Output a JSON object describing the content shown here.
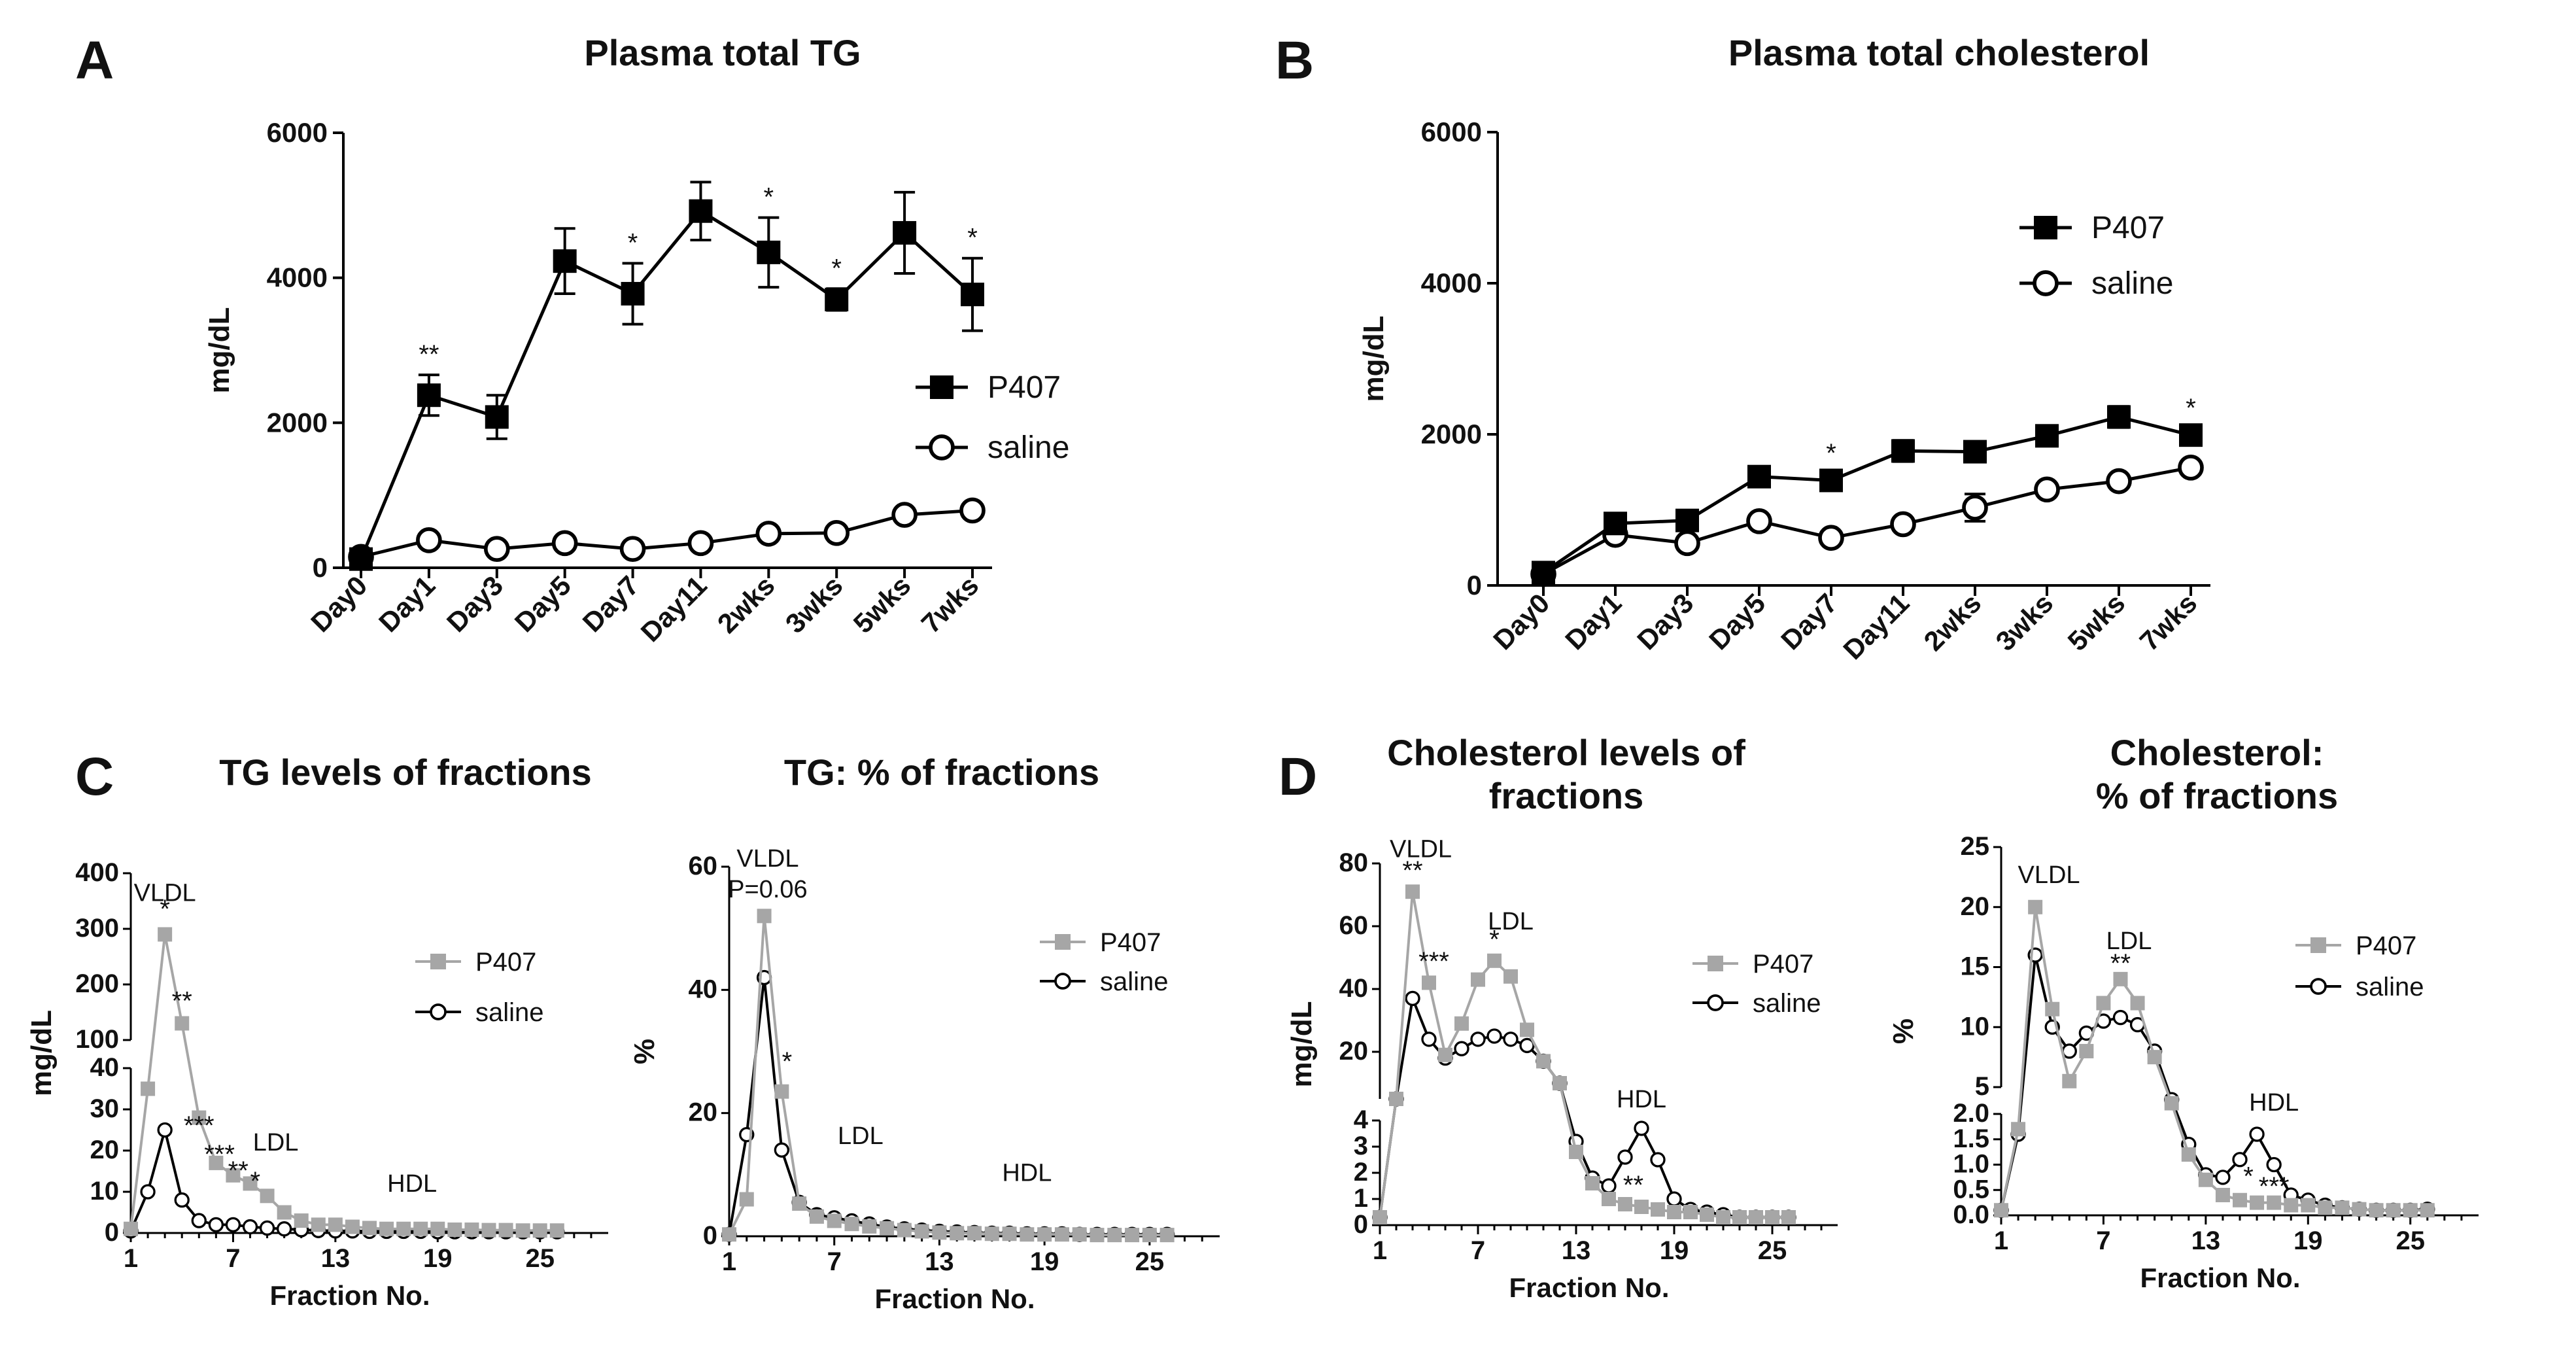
{
  "panel_letters": {
    "A": "A",
    "B": "B",
    "C": "C",
    "D": "D"
  },
  "chart_data": [
    {
      "id": "A",
      "type": "line",
      "title": "Plasma total TG",
      "ylabel": "mg/dL",
      "categories": [
        "Day0",
        "Day1",
        "Day3",
        "Day5",
        "Day7",
        "Day11",
        "2wks",
        "3wks",
        "5wks",
        "7wks"
      ],
      "ylim": [
        0,
        6000
      ],
      "yticks": [
        "0",
        "2000",
        "4000",
        "6000"
      ],
      "legend": "center-right",
      "series": [
        {
          "name": "P407",
          "color": "#000000",
          "marker": "square",
          "values": [
            120,
            2380,
            2080,
            4230,
            3780,
            4920,
            4350,
            3700,
            4620,
            3770
          ],
          "errors": [
            60,
            280,
            300,
            450,
            420,
            400,
            480,
            150,
            560,
            500
          ]
        },
        {
          "name": "saline",
          "color": "#000000",
          "marker": "circle-open",
          "values": [
            150,
            380,
            260,
            340,
            260,
            340,
            470,
            480,
            730,
            790
          ],
          "errors": [
            30,
            50,
            40,
            50,
            40,
            40,
            60,
            50,
            70,
            60
          ]
        }
      ],
      "significance": [
        "",
        "**",
        "",
        "",
        "*",
        "",
        "*",
        "*",
        "",
        "*"
      ]
    },
    {
      "id": "B",
      "type": "line",
      "title": "Plasma total cholesterol",
      "ylabel": "mg/dL",
      "categories": [
        "Day0",
        "Day1",
        "Day3",
        "Day5",
        "Day7",
        "Day11",
        "2wks",
        "3wks",
        "5wks",
        "7wks"
      ],
      "ylim": [
        0,
        6000
      ],
      "yticks": [
        "0",
        "2000",
        "4000",
        "6000"
      ],
      "legend": "top-right",
      "series": [
        {
          "name": "P407",
          "color": "#000000",
          "marker": "square",
          "values": [
            170,
            820,
            860,
            1440,
            1390,
            1780,
            1770,
            1980,
            2230,
            1990
          ],
          "errors": [
            40,
            80,
            80,
            90,
            90,
            140,
            80,
            80,
            140,
            90
          ]
        },
        {
          "name": "saline",
          "color": "#000000",
          "marker": "circle-open",
          "values": [
            150,
            670,
            560,
            850,
            630,
            810,
            1030,
            1270,
            1380,
            1560
          ],
          "errors": [
            30,
            60,
            50,
            60,
            50,
            60,
            180,
            70,
            70,
            70
          ]
        }
      ],
      "significance": [
        "",
        "",
        "",
        "",
        "*",
        "",
        "",
        "",
        "",
        "*"
      ]
    },
    {
      "id": "C-left",
      "type": "line",
      "title": "TG levels of fractions",
      "ylabel": "mg/dL",
      "xlabel": "Fraction No.",
      "x": [
        1,
        2,
        3,
        4,
        5,
        6,
        7,
        8,
        9,
        10,
        11,
        12,
        13,
        14,
        15,
        16,
        17,
        18,
        19,
        20,
        21,
        22,
        23,
        24,
        25,
        26
      ],
      "xticks": [
        "1",
        "7",
        "13",
        "19",
        "25"
      ],
      "y_break": true,
      "ylim_lower": [
        0,
        40
      ],
      "ylim_upper": [
        100,
        400
      ],
      "yticks_lower": [
        "0",
        "10",
        "20",
        "30",
        "40"
      ],
      "yticks_upper": [
        "100",
        "200",
        "300",
        "400"
      ],
      "legend": "right",
      "series": [
        {
          "name": "P407",
          "color": "#a6a6a6",
          "marker": "square",
          "values": [
            1,
            35,
            290,
            130,
            28,
            17,
            14,
            12,
            9,
            5,
            3,
            2,
            2,
            1.5,
            1.2,
            1,
            1,
            1,
            1,
            0.8,
            0.8,
            0.7,
            0.7,
            0.6,
            0.6,
            0.6
          ]
        },
        {
          "name": "saline",
          "color": "#000000",
          "marker": "circle-open",
          "values": [
            0.5,
            10,
            25,
            8,
            3,
            2,
            2,
            1.5,
            1.2,
            1,
            0.8,
            0.6,
            0.5,
            0.5,
            0.4,
            0.4,
            0.4,
            0.4,
            0.3,
            0.3,
            0.3,
            0.3,
            0.3,
            0.3,
            0.3,
            0.3
          ]
        }
      ],
      "annotations": [
        {
          "text": "VLDL",
          "x": 3,
          "y": 350
        },
        {
          "text": "LDL",
          "x": 9.5,
          "y": 20
        },
        {
          "text": "HDL",
          "x": 17.5,
          "y": 10
        },
        {
          "text": "*",
          "x": 3,
          "y": 320
        },
        {
          "text": "**",
          "x": 4,
          "y": 155
        },
        {
          "text": "***",
          "x": 5,
          "y": 24
        },
        {
          "text": "***",
          "x": 6.2,
          "y": 17
        },
        {
          "text": "**",
          "x": 7.3,
          "y": 13
        },
        {
          "text": "*",
          "x": 8.3,
          "y": 10.5
        }
      ]
    },
    {
      "id": "C-right",
      "type": "line",
      "title": "TG: % of fractions",
      "ylabel": "%",
      "xlabel": "Fraction No.",
      "x": [
        1,
        2,
        3,
        4,
        5,
        6,
        7,
        8,
        9,
        10,
        11,
        12,
        13,
        14,
        15,
        16,
        17,
        18,
        19,
        20,
        21,
        22,
        23,
        24,
        25,
        26
      ],
      "xticks": [
        "1",
        "7",
        "13",
        "19",
        "25"
      ],
      "ylim": [
        0,
        60
      ],
      "yticks": [
        "0",
        "20",
        "40",
        "60"
      ],
      "legend": "top-right",
      "series": [
        {
          "name": "P407",
          "color": "#a6a6a6",
          "marker": "square",
          "values": [
            0.3,
            6,
            52,
            23.5,
            5.3,
            3.2,
            2.5,
            2,
            1.6,
            1.3,
            1,
            0.8,
            0.6,
            0.5,
            0.5,
            0.4,
            0.4,
            0.3,
            0.3,
            0.3,
            0.3,
            0.2,
            0.2,
            0.2,
            0.2,
            0.2
          ]
        },
        {
          "name": "saline",
          "color": "#000000",
          "marker": "circle-open",
          "values": [
            0.3,
            16.5,
            42,
            14,
            5.5,
            3.5,
            3,
            2.5,
            2,
            1.5,
            1.2,
            1,
            0.8,
            0.7,
            0.6,
            0.5,
            0.5,
            0.4,
            0.4,
            0.4,
            0.3,
            0.3,
            0.3,
            0.3,
            0.3,
            0.3
          ]
        }
      ],
      "annotations": [
        {
          "text": "VLDL",
          "x": 3.2,
          "y": 60
        },
        {
          "text": "P=0.06",
          "x": 3.2,
          "y": 55
        },
        {
          "text": "LDL",
          "x": 8.5,
          "y": 15
        },
        {
          "text": "HDL",
          "x": 18,
          "y": 9
        },
        {
          "text": "*",
          "x": 4.3,
          "y": 27
        }
      ]
    },
    {
      "id": "D-left",
      "type": "line",
      "title": "Cholesterol levels of fractions",
      "ylabel": "mg/dL",
      "xlabel": "Fraction No.",
      "x": [
        1,
        2,
        3,
        4,
        5,
        6,
        7,
        8,
        9,
        10,
        11,
        12,
        13,
        14,
        15,
        16,
        17,
        18,
        19,
        20,
        21,
        22,
        23,
        24,
        25,
        26
      ],
      "xticks": [
        "1",
        "7",
        "13",
        "19",
        "25"
      ],
      "y_break": true,
      "ylim_lower": [
        0,
        4
      ],
      "ylim_upper": [
        5,
        80
      ],
      "yticks_lower": [
        "0",
        "1",
        "2",
        "3",
        "4"
      ],
      "yticks_upper": [
        "20",
        "40",
        "60",
        "80"
      ],
      "legend": "right",
      "series": [
        {
          "name": "P407",
          "color": "#a6a6a6",
          "marker": "square",
          "values": [
            0.3,
            5,
            71,
            42,
            19,
            29,
            43,
            49,
            44,
            27,
            17,
            10,
            2.8,
            1.6,
            1,
            0.8,
            0.7,
            0.6,
            0.5,
            0.5,
            0.4,
            0.3,
            0.3,
            0.3,
            0.3,
            0.3
          ]
        },
        {
          "name": "saline",
          "color": "#000000",
          "marker": "circle-open",
          "values": [
            0.3,
            5,
            37,
            24,
            18,
            21,
            24,
            25,
            24,
            22,
            17,
            10,
            3.2,
            1.8,
            1.5,
            2.6,
            3.7,
            2.5,
            1,
            0.6,
            0.5,
            0.4,
            0.3,
            0.3,
            0.3,
            0.3
          ]
        }
      ],
      "annotations": [
        {
          "text": "VLDL",
          "x": 3.5,
          "y": 82
        },
        {
          "text": "LDL",
          "x": 9,
          "y": 59
        },
        {
          "text": "HDL",
          "x": 17,
          "y": 4.6
        },
        {
          "text": "**",
          "x": 3,
          "y": 75
        },
        {
          "text": "***",
          "x": 4.3,
          "y": 46
        },
        {
          "text": "*",
          "x": 8,
          "y": 53
        },
        {
          "text": "**",
          "x": 16.5,
          "y": 1.2
        }
      ]
    },
    {
      "id": "D-right",
      "type": "line",
      "title": "Cholesterol: % of fractions",
      "ylabel": "%",
      "xlabel": "Fraction No.",
      "x": [
        1,
        2,
        3,
        4,
        5,
        6,
        7,
        8,
        9,
        10,
        11,
        12,
        13,
        14,
        15,
        16,
        17,
        18,
        19,
        20,
        21,
        22,
        23,
        24,
        25,
        26
      ],
      "xticks": [
        "1",
        "7",
        "13",
        "19",
        "25"
      ],
      "y_break": true,
      "ylim_lower": [
        0,
        2
      ],
      "ylim_upper": [
        5,
        25
      ],
      "yticks_lower": [
        "0.0",
        "0.5",
        "1.0",
        "1.5",
        "2.0"
      ],
      "yticks_upper": [
        "5",
        "10",
        "15",
        "20",
        "25"
      ],
      "legend": "right",
      "series": [
        {
          "name": "P407",
          "color": "#a6a6a6",
          "marker": "square",
          "values": [
            0.1,
            1.7,
            20,
            11.5,
            5.5,
            8,
            12,
            14,
            12,
            7.5,
            3.2,
            1.2,
            0.7,
            0.4,
            0.3,
            0.25,
            0.25,
            0.2,
            0.2,
            0.15,
            0.15,
            0.12,
            0.1,
            0.1,
            0.1,
            0.1
          ]
        },
        {
          "name": "saline",
          "color": "#000000",
          "marker": "circle-open",
          "values": [
            0.1,
            1.6,
            16,
            10,
            8,
            9.5,
            10.5,
            10.8,
            10.2,
            8,
            3.6,
            1.4,
            0.8,
            0.75,
            1.1,
            1.6,
            1,
            0.4,
            0.3,
            0.2,
            0.15,
            0.12,
            0.1,
            0.1,
            0.1,
            0.12
          ]
        }
      ],
      "annotations": [
        {
          "text": "VLDL",
          "x": 3.8,
          "y": 22
        },
        {
          "text": "LDL",
          "x": 8.5,
          "y": 16.5
        },
        {
          "text": "HDL",
          "x": 17,
          "y": 2.35
        },
        {
          "text": "**",
          "x": 8,
          "y": 14.6
        },
        {
          "text": "*",
          "x": 15.5,
          "y": 0.6
        },
        {
          "text": "***",
          "x": 17,
          "y": 0.4
        }
      ]
    }
  ]
}
